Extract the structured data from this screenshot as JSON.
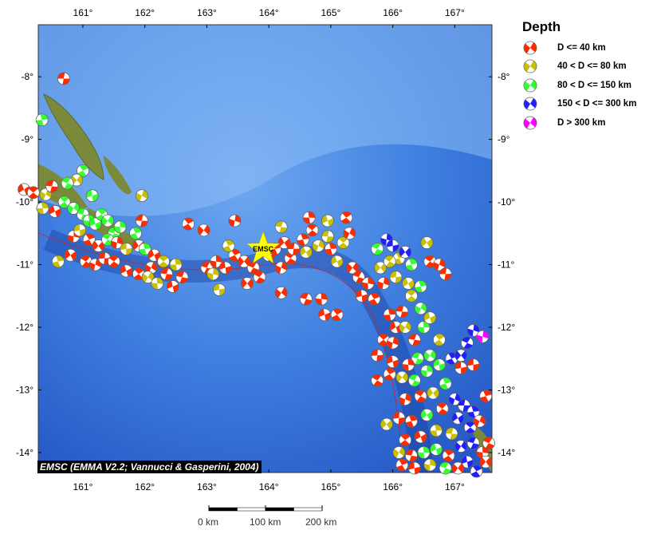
{
  "map": {
    "extent": {
      "lon_min": 160.28,
      "lon_max": 167.6,
      "lat_max": -7.17,
      "lat_min": -14.32
    },
    "lon_ticks": [
      161,
      162,
      163,
      164,
      165,
      166,
      167
    ],
    "lat_ticks": [
      -8,
      -9,
      -10,
      -11,
      -12,
      -13,
      -14
    ],
    "lon_tick_labels": [
      "161°",
      "162°",
      "163°",
      "164°",
      "165°",
      "166°",
      "167°"
    ],
    "lat_tick_labels": [
      "-8°",
      "-9°",
      "-10°",
      "-11°",
      "-12°",
      "-13°",
      "-14°"
    ],
    "ocean_color": "#2f6fd8",
    "star": {
      "label": "EMSC",
      "lon": 163.91,
      "lat": -10.75,
      "color": "#ffff00"
    }
  },
  "legend": {
    "title": "Depth",
    "items": [
      {
        "label": "D <= 40 km",
        "color": "#ff2a00"
      },
      {
        "label": "40 < D <= 80 km",
        "color": "#c8c000"
      },
      {
        "label": "80 < D <= 150 km",
        "color": "#33ff33"
      },
      {
        "label": "150 < D <= 300 km",
        "color": "#1f1fff"
      },
      {
        "label": "D > 300 km",
        "color": "#ff00ff"
      }
    ]
  },
  "caption": "EMSC (EMMA V2.2; Vannucci & Gasperini, 2004)",
  "scale_bar": {
    "labels": [
      "0 km",
      "100 km",
      "200 km"
    ]
  },
  "events": [
    [
      160.69,
      -8.03,
      0
    ],
    [
      160.34,
      -8.69,
      2
    ],
    [
      160.05,
      -9.8,
      0
    ],
    [
      160.2,
      -9.85,
      0
    ],
    [
      160.4,
      -9.88,
      1
    ],
    [
      160.5,
      -9.75,
      0
    ],
    [
      160.35,
      -10.1,
      1
    ],
    [
      160.55,
      -10.15,
      0
    ],
    [
      160.7,
      -10.0,
      2
    ],
    [
      160.85,
      -10.1,
      2
    ],
    [
      161.0,
      -10.2,
      2
    ],
    [
      161.1,
      -10.3,
      2
    ],
    [
      161.2,
      -10.35,
      2
    ],
    [
      161.3,
      -10.2,
      2
    ],
    [
      161.4,
      -10.3,
      2
    ],
    [
      161.5,
      -10.5,
      2
    ],
    [
      161.6,
      -10.4,
      2
    ],
    [
      161.15,
      -9.9,
      2
    ],
    [
      161.0,
      -9.5,
      2
    ],
    [
      160.9,
      -9.65,
      1
    ],
    [
      160.75,
      -9.7,
      2
    ],
    [
      160.85,
      -10.55,
      0
    ],
    [
      160.95,
      -10.45,
      1
    ],
    [
      161.1,
      -10.6,
      0
    ],
    [
      161.25,
      -10.7,
      0
    ],
    [
      161.4,
      -10.6,
      2
    ],
    [
      161.55,
      -10.65,
      0
    ],
    [
      161.7,
      -10.75,
      1
    ],
    [
      161.85,
      -10.5,
      2
    ],
    [
      161.9,
      -10.7,
      0
    ],
    [
      161.05,
      -10.95,
      0
    ],
    [
      161.2,
      -11.0,
      0
    ],
    [
      161.35,
      -10.9,
      0
    ],
    [
      160.6,
      -10.95,
      1
    ],
    [
      160.8,
      -10.85,
      0
    ],
    [
      161.5,
      -10.95,
      0
    ],
    [
      161.95,
      -9.9,
      1
    ],
    [
      161.95,
      -10.3,
      0
    ],
    [
      162.0,
      -10.75,
      2
    ],
    [
      162.15,
      -10.85,
      0
    ],
    [
      162.3,
      -10.95,
      1
    ],
    [
      162.1,
      -11.05,
      0
    ],
    [
      162.35,
      -11.15,
      0
    ],
    [
      162.5,
      -11.0,
      1
    ],
    [
      161.7,
      -11.1,
      0
    ],
    [
      161.9,
      -11.15,
      0
    ],
    [
      162.05,
      -11.2,
      1
    ],
    [
      162.6,
      -11.2,
      0
    ],
    [
      162.2,
      -11.3,
      1
    ],
    [
      162.45,
      -11.35,
      0
    ],
    [
      162.7,
      -10.35,
      0
    ],
    [
      162.95,
      -10.45,
      0
    ],
    [
      163.0,
      -11.05,
      0
    ],
    [
      163.15,
      -10.95,
      0
    ],
    [
      163.3,
      -11.05,
      0
    ],
    [
      163.45,
      -10.85,
      0
    ],
    [
      163.6,
      -10.95,
      0
    ],
    [
      163.75,
      -11.05,
      0
    ],
    [
      163.1,
      -11.15,
      1
    ],
    [
      163.2,
      -11.4,
      1
    ],
    [
      163.35,
      -10.7,
      1
    ],
    [
      163.65,
      -11.3,
      0
    ],
    [
      163.85,
      -11.2,
      0
    ],
    [
      163.45,
      -10.3,
      0
    ],
    [
      164.0,
      -10.85,
      0
    ],
    [
      164.1,
      -10.75,
      0
    ],
    [
      164.25,
      -10.65,
      0
    ],
    [
      164.35,
      -10.9,
      0
    ],
    [
      164.2,
      -11.05,
      0
    ],
    [
      164.4,
      -10.75,
      0
    ],
    [
      164.55,
      -10.6,
      0
    ],
    [
      164.6,
      -10.8,
      1
    ],
    [
      164.7,
      -10.45,
      0
    ],
    [
      164.8,
      -10.7,
      1
    ],
    [
      164.95,
      -10.55,
      1
    ],
    [
      165.0,
      -10.75,
      0
    ],
    [
      165.1,
      -10.95,
      1
    ],
    [
      165.2,
      -10.65,
      1
    ],
    [
      165.3,
      -10.5,
      0
    ],
    [
      164.2,
      -10.4,
      1
    ],
    [
      164.65,
      -10.25,
      0
    ],
    [
      164.95,
      -10.3,
      1
    ],
    [
      165.25,
      -10.25,
      0
    ],
    [
      164.2,
      -11.45,
      0
    ],
    [
      164.6,
      -11.55,
      0
    ],
    [
      164.85,
      -11.55,
      0
    ],
    [
      164.9,
      -11.8,
      0
    ],
    [
      165.1,
      -11.8,
      0
    ],
    [
      165.35,
      -11.05,
      0
    ],
    [
      165.45,
      -11.2,
      0
    ],
    [
      165.6,
      -11.3,
      0
    ],
    [
      165.5,
      -11.5,
      0
    ],
    [
      165.7,
      -11.55,
      0
    ],
    [
      165.8,
      -11.05,
      1
    ],
    [
      165.75,
      -10.75,
      2
    ],
    [
      165.9,
      -10.6,
      3
    ],
    [
      166.0,
      -10.7,
      3
    ],
    [
      166.1,
      -10.9,
      1
    ],
    [
      166.2,
      -10.8,
      3
    ],
    [
      165.95,
      -10.95,
      1
    ],
    [
      165.85,
      -11.3,
      0
    ],
    [
      166.05,
      -11.2,
      1
    ],
    [
      166.3,
      -11.0,
      2
    ],
    [
      166.55,
      -10.65,
      1
    ],
    [
      166.6,
      -10.95,
      0
    ],
    [
      166.75,
      -11.0,
      0
    ],
    [
      166.85,
      -11.15,
      0
    ],
    [
      166.45,
      -11.35,
      2
    ],
    [
      166.25,
      -11.3,
      1
    ],
    [
      166.3,
      -11.5,
      1
    ],
    [
      166.45,
      -11.7,
      2
    ],
    [
      166.15,
      -11.75,
      0
    ],
    [
      165.95,
      -11.8,
      0
    ],
    [
      166.05,
      -12.0,
      0
    ],
    [
      165.85,
      -12.2,
      0
    ],
    [
      166.2,
      -12.0,
      1
    ],
    [
      166.35,
      -12.2,
      0
    ],
    [
      166.5,
      -12.0,
      2
    ],
    [
      166.6,
      -11.85,
      1
    ],
    [
      166.75,
      -12.2,
      1
    ],
    [
      166.6,
      -12.45,
      2
    ],
    [
      166.4,
      -12.5,
      2
    ],
    [
      166.25,
      -12.6,
      0
    ],
    [
      166.0,
      -12.55,
      0
    ],
    [
      165.95,
      -12.75,
      0
    ],
    [
      166.15,
      -12.8,
      1
    ],
    [
      166.35,
      -12.85,
      2
    ],
    [
      166.55,
      -12.7,
      2
    ],
    [
      166.75,
      -12.6,
      2
    ],
    [
      166.95,
      -12.5,
      3
    ],
    [
      167.1,
      -12.45,
      3
    ],
    [
      167.2,
      -12.25,
      3
    ],
    [
      167.3,
      -12.05,
      3
    ],
    [
      167.1,
      -12.65,
      0
    ],
    [
      166.85,
      -12.9,
      2
    ],
    [
      166.65,
      -13.05,
      1
    ],
    [
      166.45,
      -13.1,
      0
    ],
    [
      166.2,
      -13.15,
      0
    ],
    [
      166.1,
      -13.45,
      0
    ],
    [
      166.3,
      -13.5,
      0
    ],
    [
      166.55,
      -13.4,
      2
    ],
    [
      166.8,
      -13.3,
      0
    ],
    [
      167.0,
      -13.15,
      3
    ],
    [
      167.15,
      -13.25,
      3
    ],
    [
      167.3,
      -13.35,
      3
    ],
    [
      167.05,
      -13.45,
      3
    ],
    [
      167.25,
      -13.6,
      3
    ],
    [
      167.4,
      -13.5,
      0
    ],
    [
      166.95,
      -13.7,
      1
    ],
    [
      166.7,
      -13.65,
      1
    ],
    [
      166.45,
      -13.75,
      0
    ],
    [
      166.2,
      -13.8,
      0
    ],
    [
      166.1,
      -14.0,
      1
    ],
    [
      166.3,
      -14.05,
      0
    ],
    [
      166.5,
      -14.0,
      2
    ],
    [
      166.7,
      -13.95,
      2
    ],
    [
      166.9,
      -14.05,
      0
    ],
    [
      167.1,
      -13.9,
      3
    ],
    [
      167.3,
      -13.85,
      3
    ],
    [
      167.45,
      -14.0,
      0
    ],
    [
      167.2,
      -14.15,
      3
    ],
    [
      167.35,
      -14.3,
      3
    ],
    [
      167.05,
      -14.25,
      0
    ],
    [
      166.85,
      -14.25,
      2
    ],
    [
      166.6,
      -14.2,
      1
    ],
    [
      166.35,
      -14.25,
      0
    ],
    [
      166.15,
      -14.2,
      0
    ],
    [
      167.5,
      -14.15,
      0
    ],
    [
      167.55,
      -13.85,
      0
    ],
    [
      167.45,
      -12.15,
      4
    ],
    [
      167.3,
      -12.6,
      0
    ],
    [
      167.5,
      -13.1,
      0
    ],
    [
      165.9,
      -13.55,
      1
    ],
    [
      165.75,
      -12.85,
      0
    ],
    [
      166.0,
      -12.25,
      0
    ],
    [
      165.75,
      -12.45,
      0
    ]
  ]
}
